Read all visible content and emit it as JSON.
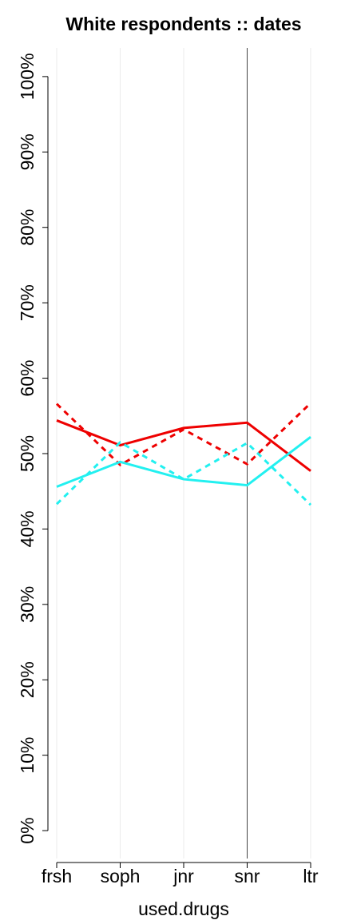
{
  "chart_data": {
    "type": "line",
    "title": "White respondents :: dates",
    "x_label": "used.drugs",
    "categories": [
      "frsh",
      "soph",
      "jnr",
      "snr",
      "ltr"
    ],
    "series": [
      {
        "color": "#ee0000",
        "dash": false,
        "values": [
          54.4,
          51.1,
          53.4,
          54.1,
          47.7
        ]
      },
      {
        "color": "#ee0000",
        "dash": true,
        "values": [
          56.6,
          48.5,
          53.2,
          48.6,
          56.7
        ]
      },
      {
        "color": "#22f0f0",
        "dash": false,
        "values": [
          45.6,
          48.9,
          46.6,
          45.8,
          52.2
        ]
      },
      {
        "color": "#22f0f0",
        "dash": true,
        "values": [
          43.3,
          51.5,
          46.6,
          51.4,
          43.2
        ]
      }
    ],
    "ylim": [
      -3.7,
      103.8
    ],
    "yticks": [
      {
        "value": 0,
        "label": "0%"
      },
      {
        "value": 10,
        "label": "10%"
      },
      {
        "value": 20,
        "label": "20%"
      },
      {
        "value": 30,
        "label": "30%"
      },
      {
        "value": 40,
        "label": "40%"
      },
      {
        "value": 50,
        "label": "50%"
      },
      {
        "value": 60,
        "label": "60%"
      },
      {
        "value": 70,
        "label": "70%"
      },
      {
        "value": 80,
        "label": "80%"
      },
      {
        "value": 90,
        "label": "90%"
      },
      {
        "value": 100,
        "label": "100%"
      }
    ],
    "grid": true,
    "marker_category": "snr"
  }
}
